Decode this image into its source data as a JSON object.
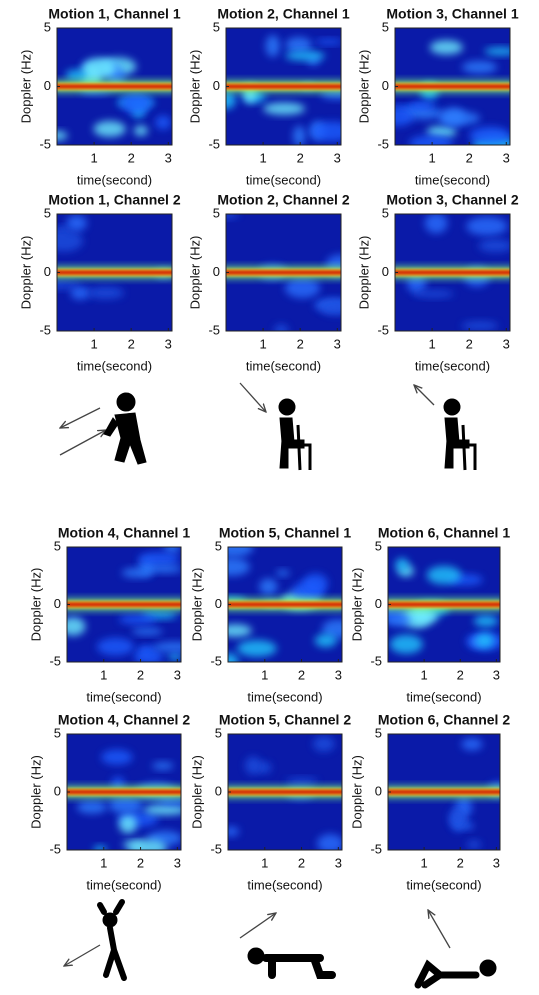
{
  "chart_data": [
    {
      "type": "heatmap",
      "title": "Motion 1, Channel 1",
      "xlabel": "time(second)",
      "ylabel": "Doppler (Hz)",
      "xlim": [
        0,
        3.1
      ],
      "ylim": [
        -5,
        5
      ],
      "xticks": [
        1,
        2,
        3
      ],
      "yticks": [
        -5,
        0,
        5
      ],
      "colormap": "jet"
    },
    {
      "type": "heatmap",
      "title": "Motion 2, Channel 1",
      "xlabel": "time(second)",
      "ylabel": "Doppler (Hz)",
      "xlim": [
        0,
        3.1
      ],
      "ylim": [
        -5,
        5
      ],
      "xticks": [
        1,
        2,
        3
      ],
      "yticks": [
        -5,
        0,
        5
      ],
      "colormap": "jet"
    },
    {
      "type": "heatmap",
      "title": "Motion 3, Channel 1",
      "xlabel": "time(second)",
      "ylabel": "Doppler (Hz)",
      "xlim": [
        0,
        3.1
      ],
      "ylim": [
        -5,
        5
      ],
      "xticks": [
        1,
        2,
        3
      ],
      "yticks": [
        -5,
        0,
        5
      ],
      "colormap": "jet"
    },
    {
      "type": "heatmap",
      "title": "Motion 1, Channel 2",
      "xlabel": "time(second)",
      "ylabel": "Doppler (Hz)",
      "xlim": [
        0,
        3.1
      ],
      "ylim": [
        -5,
        5
      ],
      "xticks": [
        1,
        2,
        3
      ],
      "yticks": [
        -5,
        0,
        5
      ],
      "colormap": "jet"
    },
    {
      "type": "heatmap",
      "title": "Motion 2, Channel 2",
      "xlabel": "time(second)",
      "ylabel": "Doppler (Hz)",
      "xlim": [
        0,
        3.1
      ],
      "ylim": [
        -5,
        5
      ],
      "xticks": [
        1,
        2,
        3
      ],
      "yticks": [
        -5,
        0,
        5
      ],
      "colormap": "jet"
    },
    {
      "type": "heatmap",
      "title": "Motion 3, Channel 2",
      "xlabel": "time(second)",
      "ylabel": "Doppler (Hz)",
      "xlim": [
        0,
        3.1
      ],
      "ylim": [
        -5,
        5
      ],
      "xticks": [
        1,
        2,
        3
      ],
      "yticks": [
        -5,
        0,
        5
      ],
      "colormap": "jet"
    },
    {
      "type": "heatmap",
      "title": "Motion 4, Channel 1",
      "xlabel": "time(second)",
      "ylabel": "Doppler (Hz)",
      "xlim": [
        0,
        3.1
      ],
      "ylim": [
        -5,
        5
      ],
      "xticks": [
        1,
        2,
        3
      ],
      "yticks": [
        -5,
        0,
        5
      ],
      "colormap": "jet"
    },
    {
      "type": "heatmap",
      "title": "Motion 5, Channel 1",
      "xlabel": "time(second)",
      "ylabel": "Doppler (Hz)",
      "xlim": [
        0,
        3.1
      ],
      "ylim": [
        -5,
        5
      ],
      "xticks": [
        1,
        2,
        3
      ],
      "yticks": [
        -5,
        0,
        5
      ],
      "colormap": "jet"
    },
    {
      "type": "heatmap",
      "title": "Motion 6, Channel 1",
      "xlabel": "time(second)",
      "ylabel": "Doppler (Hz)",
      "xlim": [
        0,
        3.1
      ],
      "ylim": [
        -5,
        5
      ],
      "xticks": [
        1,
        2,
        3
      ],
      "yticks": [
        -5,
        0,
        5
      ],
      "colormap": "jet"
    },
    {
      "type": "heatmap",
      "title": "Motion 4, Channel 2",
      "xlabel": "time(second)",
      "ylabel": "Doppler (Hz)",
      "xlim": [
        0,
        3.1
      ],
      "ylim": [
        -5,
        5
      ],
      "xticks": [
        1,
        2,
        3
      ],
      "yticks": [
        -5,
        0,
        5
      ],
      "colormap": "jet"
    },
    {
      "type": "heatmap",
      "title": "Motion 5, Channel 2",
      "xlabel": "time(second)",
      "ylabel": "Doppler (Hz)",
      "xlim": [
        0,
        3.1
      ],
      "ylim": [
        -5,
        5
      ],
      "xticks": [
        1,
        2,
        3
      ],
      "yticks": [
        -5,
        0,
        5
      ],
      "colormap": "jet"
    },
    {
      "type": "heatmap",
      "title": "Motion 6, Channel 2",
      "xlabel": "time(second)",
      "ylabel": "Doppler (Hz)",
      "xlim": [
        0,
        3.1
      ],
      "ylim": [
        -5,
        5
      ],
      "xticks": [
        1,
        2,
        3
      ],
      "yticks": [
        -5,
        0,
        5
      ],
      "colormap": "jet"
    }
  ]
}
